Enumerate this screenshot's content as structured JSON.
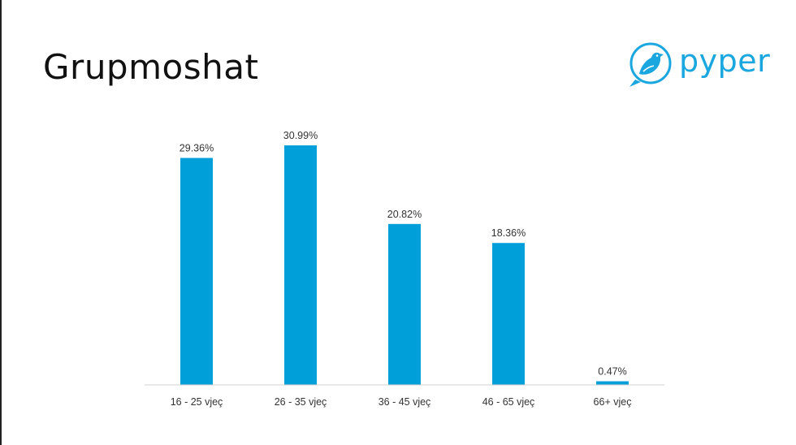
{
  "slide": {
    "title": "Grupmoshat"
  },
  "logo": {
    "text": "pyper",
    "icon": "bird-icon"
  },
  "colors": {
    "bar": "#009fd9",
    "axis": "#d0d0d0",
    "brand": "#1aa6df"
  },
  "chart_data": {
    "type": "bar",
    "categories": [
      "16 - 25 vjeç",
      "26 - 35 vjeç",
      "36 - 45 vjeç",
      "46 - 65 vjeç",
      "66+ vjeç"
    ],
    "values": [
      29.36,
      30.99,
      20.82,
      18.36,
      0.47
    ],
    "labels": [
      "29.36%",
      "30.99%",
      "20.82%",
      "18.36%",
      "0.47%"
    ],
    "ylim": [
      0,
      30.99
    ],
    "grid": false,
    "legend": "none",
    "xlabel": "",
    "ylabel": ""
  }
}
